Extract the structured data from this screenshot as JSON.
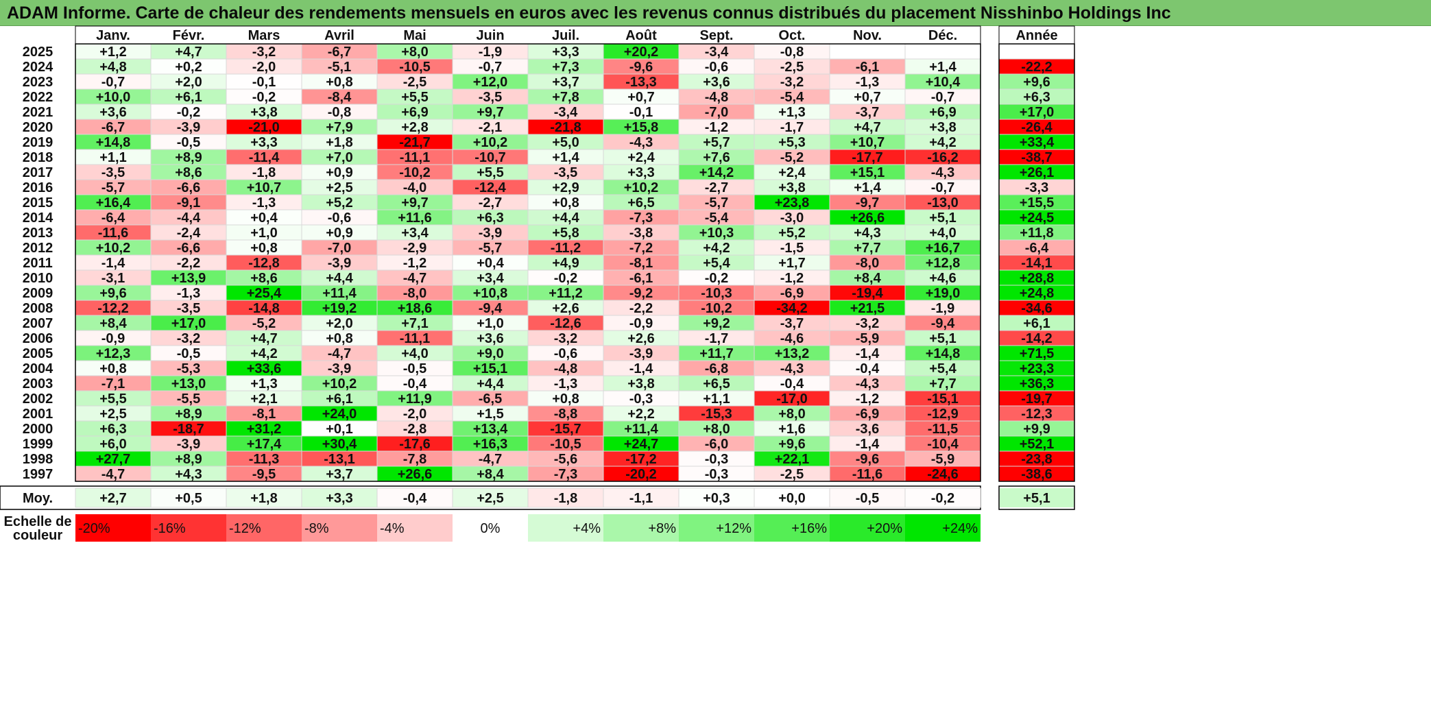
{
  "title": "ADAM Informe. Carte de chaleur des rendements mensuels en euros avec les revenus connus distribués du placement Nisshinbo Holdings Inc",
  "chart_data": {
    "type": "heatmap",
    "months": [
      "Janv.",
      "Févr.",
      "Mars",
      "Avril",
      "Mai",
      "Juin",
      "Juil.",
      "Août",
      "Sept.",
      "Oct.",
      "Nov.",
      "Déc."
    ],
    "year_header": "Année",
    "rows": [
      {
        "year": "2025",
        "values": [
          "+1,2",
          "+4,7",
          "-3,2",
          "-6,7",
          "+8,0",
          "-1,9",
          "+3,3",
          "+20,2",
          "-3,4",
          "-0,8",
          "",
          ""
        ],
        "annual": ""
      },
      {
        "year": "2024",
        "values": [
          "+4,8",
          "+0,2",
          "-2,0",
          "-5,1",
          "-10,5",
          "-0,7",
          "+7,3",
          "-9,6",
          "-0,6",
          "-2,5",
          "-6,1",
          "+1,4"
        ],
        "annual": "-22,2"
      },
      {
        "year": "2023",
        "values": [
          "-0,7",
          "+2,0",
          "-0,1",
          "+0,8",
          "-2,5",
          "+12,0",
          "+3,7",
          "-13,3",
          "+3,6",
          "-3,2",
          "-1,3",
          "+10,4"
        ],
        "annual": "+9,6"
      },
      {
        "year": "2022",
        "values": [
          "+10,0",
          "+6,1",
          "-0,2",
          "-8,4",
          "+5,5",
          "-3,5",
          "+7,8",
          "+0,7",
          "-4,8",
          "-5,4",
          "+0,7",
          "-0,7"
        ],
        "annual": "+6,3"
      },
      {
        "year": "2021",
        "values": [
          "+3,6",
          "-0,2",
          "+3,8",
          "-0,8",
          "+6,9",
          "+9,7",
          "-3,4",
          "-0,1",
          "-7,0",
          "+1,3",
          "-3,7",
          "+6,9"
        ],
        "annual": "+17,0"
      },
      {
        "year": "2020",
        "values": [
          "-6,7",
          "-3,9",
          "-21,0",
          "+7,9",
          "+2,8",
          "-2,1",
          "-21,8",
          "+15,8",
          "-1,2",
          "-1,7",
          "+4,7",
          "+3,8"
        ],
        "annual": "-26,4"
      },
      {
        "year": "2019",
        "values": [
          "+14,8",
          "-0,5",
          "+3,3",
          "+1,8",
          "-21,7",
          "+10,2",
          "+5,0",
          "-4,3",
          "+5,7",
          "+5,3",
          "+10,7",
          "+4,2"
        ],
        "annual": "+33,4"
      },
      {
        "year": "2018",
        "values": [
          "+1,1",
          "+8,9",
          "-11,4",
          "+7,0",
          "-11,1",
          "-10,7",
          "+1,4",
          "+2,4",
          "+7,6",
          "-5,2",
          "-17,7",
          "-16,2"
        ],
        "annual": "-38,7"
      },
      {
        "year": "2017",
        "values": [
          "-3,5",
          "+8,6",
          "-1,8",
          "+0,9",
          "-10,2",
          "+5,5",
          "-3,5",
          "+3,3",
          "+14,2",
          "+2,4",
          "+15,1",
          "-4,3"
        ],
        "annual": "+26,1"
      },
      {
        "year": "2016",
        "values": [
          "-5,7",
          "-6,6",
          "+10,7",
          "+2,5",
          "-4,0",
          "-12,4",
          "+2,9",
          "+10,2",
          "-2,7",
          "+3,8",
          "+1,4",
          "-0,7"
        ],
        "annual": "-3,3"
      },
      {
        "year": "2015",
        "values": [
          "+16,4",
          "-9,1",
          "-1,3",
          "+5,2",
          "+9,7",
          "-2,7",
          "+0,8",
          "+6,5",
          "-5,7",
          "+23,8",
          "-9,7",
          "-13,0"
        ],
        "annual": "+15,5"
      },
      {
        "year": "2014",
        "values": [
          "-6,4",
          "-4,4",
          "+0,4",
          "-0,6",
          "+11,6",
          "+6,3",
          "+4,4",
          "-7,3",
          "-5,4",
          "-3,0",
          "+26,6",
          "+5,1"
        ],
        "annual": "+24,5"
      },
      {
        "year": "2013",
        "values": [
          "-11,6",
          "-2,4",
          "+1,0",
          "+0,9",
          "+3,4",
          "-3,9",
          "+5,8",
          "-3,8",
          "+10,3",
          "+5,2",
          "+4,3",
          "+4,0"
        ],
        "annual": "+11,8"
      },
      {
        "year": "2012",
        "values": [
          "+10,2",
          "-6,6",
          "+0,8",
          "-7,0",
          "-2,9",
          "-5,7",
          "-11,2",
          "-7,2",
          "+4,2",
          "-1,5",
          "+7,7",
          "+16,7"
        ],
        "annual": "-6,4"
      },
      {
        "year": "2011",
        "values": [
          "-1,4",
          "-2,2",
          "-12,8",
          "-3,9",
          "-1,2",
          "+0,4",
          "+4,9",
          "-8,1",
          "+5,4",
          "+1,7",
          "-8,0",
          "+12,8"
        ],
        "annual": "-14,1"
      },
      {
        "year": "2010",
        "values": [
          "-3,1",
          "+13,9",
          "+8,6",
          "+4,4",
          "-4,7",
          "+3,4",
          "-0,2",
          "-6,1",
          "-0,2",
          "-1,2",
          "+8,4",
          "+4,6"
        ],
        "annual": "+28,8"
      },
      {
        "year": "2009",
        "values": [
          "+9,6",
          "-1,3",
          "+25,4",
          "+11,4",
          "-8,0",
          "+10,8",
          "+11,2",
          "-9,2",
          "-10,3",
          "-6,9",
          "-19,4",
          "+19,0"
        ],
        "annual": "+24,8"
      },
      {
        "year": "2008",
        "values": [
          "-12,2",
          "-3,5",
          "-14,8",
          "+19,2",
          "+18,6",
          "-9,4",
          "+2,6",
          "-2,2",
          "-10,2",
          "-34,2",
          "+21,5",
          "-1,9"
        ],
        "annual": "-34,6"
      },
      {
        "year": "2007",
        "values": [
          "+8,4",
          "+17,0",
          "-5,2",
          "+2,0",
          "+7,1",
          "+1,0",
          "-12,6",
          "-0,9",
          "+9,2",
          "-3,7",
          "-3,2",
          "-9,4"
        ],
        "annual": "+6,1"
      },
      {
        "year": "2006",
        "values": [
          "-0,9",
          "-3,2",
          "+4,7",
          "+0,8",
          "-11,1",
          "+3,6",
          "-3,2",
          "+2,6",
          "-1,7",
          "-4,6",
          "-5,9",
          "+5,1"
        ],
        "annual": "-14,2"
      },
      {
        "year": "2005",
        "values": [
          "+12,3",
          "-0,5",
          "+4,2",
          "-4,7",
          "+4,0",
          "+9,0",
          "-0,6",
          "-3,9",
          "+11,7",
          "+13,2",
          "-1,4",
          "+14,8"
        ],
        "annual": "+71,5"
      },
      {
        "year": "2004",
        "values": [
          "+0,8",
          "-5,3",
          "+33,6",
          "-3,9",
          "-0,5",
          "+15,1",
          "-4,8",
          "-1,4",
          "-6,8",
          "-4,3",
          "-0,4",
          "+5,4"
        ],
        "annual": "+23,3"
      },
      {
        "year": "2003",
        "values": [
          "-7,1",
          "+13,0",
          "+1,3",
          "+10,2",
          "-0,4",
          "+4,4",
          "-1,3",
          "+3,8",
          "+6,5",
          "-0,4",
          "-4,3",
          "+7,7"
        ],
        "annual": "+36,3"
      },
      {
        "year": "2002",
        "values": [
          "+5,5",
          "-5,5",
          "+2,1",
          "+6,1",
          "+11,9",
          "-6,5",
          "+0,8",
          "-0,3",
          "+1,1",
          "-17,0",
          "-1,2",
          "-15,1"
        ],
        "annual": "-19,7"
      },
      {
        "year": "2001",
        "values": [
          "+2,5",
          "+8,9",
          "-8,1",
          "+24,0",
          "-2,0",
          "+1,5",
          "-8,8",
          "+2,2",
          "-15,3",
          "+8,0",
          "-6,9",
          "-12,9"
        ],
        "annual": "-12,3"
      },
      {
        "year": "2000",
        "values": [
          "+6,3",
          "-18,7",
          "+31,2",
          "+0,1",
          "-2,8",
          "+13,4",
          "-15,7",
          "+11,4",
          "+8,0",
          "+1,6",
          "-3,6",
          "-11,5"
        ],
        "annual": "+9,9"
      },
      {
        "year": "1999",
        "values": [
          "+6,0",
          "-3,9",
          "+17,4",
          "+30,4",
          "-17,6",
          "+16,3",
          "-10,5",
          "+24,7",
          "-6,0",
          "+9,6",
          "-1,4",
          "-10,4"
        ],
        "annual": "+52,1"
      },
      {
        "year": "1998",
        "values": [
          "+27,7",
          "+8,9",
          "-11,3",
          "-13,1",
          "-7,8",
          "-4,7",
          "-5,6",
          "-17,2",
          "-0,3",
          "+22,1",
          "-9,6",
          "-5,9"
        ],
        "annual": "-23,8"
      },
      {
        "year": "1997",
        "values": [
          "-4,7",
          "+4,3",
          "-9,5",
          "+3,7",
          "+26,6",
          "+8,4",
          "-7,3",
          "-20,2",
          "-0,3",
          "-2,5",
          "-11,6",
          "-24,6"
        ],
        "annual": "-38,6"
      }
    ],
    "average": {
      "label": "Moy.",
      "values": [
        "+2,7",
        "+0,5",
        "+1,8",
        "+3,3",
        "-0,4",
        "+2,5",
        "-1,8",
        "-1,1",
        "+0,3",
        "+0,0",
        "-0,5",
        "-0,2"
      ],
      "annual": "+5,1"
    },
    "scale": {
      "label_line1": "Echelle de",
      "label_line2": "couleur",
      "stops": [
        "-20%",
        "-16%",
        "-12%",
        "-8%",
        "-4%",
        "0%",
        "+4%",
        "+8%",
        "+12%",
        "+16%",
        "+20%",
        "+24%"
      ],
      "stop_values": [
        -20,
        -16,
        -12,
        -8,
        -4,
        0,
        4,
        8,
        12,
        16,
        20,
        24
      ]
    },
    "colors": {
      "negative_max": "#ff0000",
      "positive_max": "#00e600",
      "neutral": "#ffffff",
      "title_bar": "#7dc66f"
    }
  }
}
